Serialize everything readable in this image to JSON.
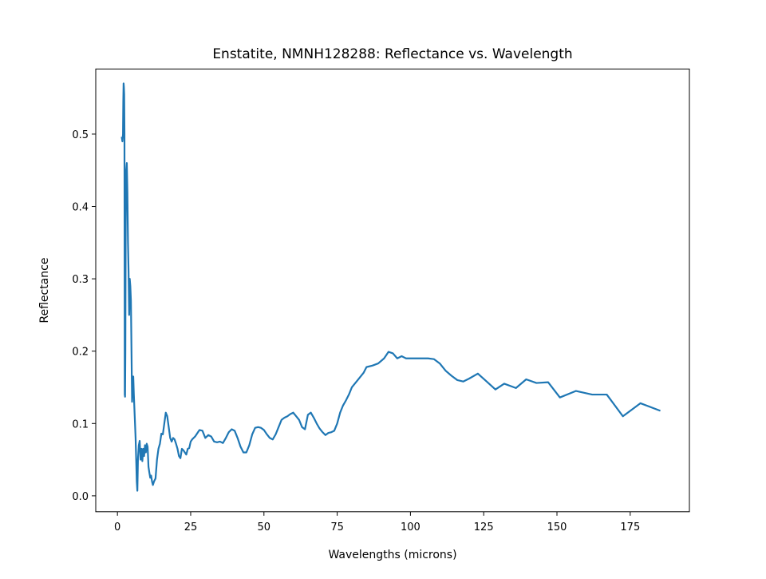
{
  "chart_data": {
    "type": "line",
    "title": "Enstatite, NMNH128288: Reflectance vs. Wavelength",
    "xlabel": "Wavelengths (microns)",
    "ylabel": "Reflectance",
    "xlim": [
      -7.4,
      195.2
    ],
    "ylim": [
      -0.022,
      0.59
    ],
    "xticks": [
      0,
      25,
      50,
      75,
      100,
      125,
      150,
      175
    ],
    "yticks": [
      0.0,
      0.1,
      0.2,
      0.3,
      0.4,
      0.5
    ],
    "xtick_labels": [
      "0",
      "25",
      "50",
      "75",
      "100",
      "125",
      "150",
      "175"
    ],
    "ytick_labels": [
      "0.0",
      "0.1",
      "0.2",
      "0.3",
      "0.4",
      "0.5"
    ],
    "grid": false,
    "legend": false,
    "series": [
      {
        "color": "#1f77b4",
        "x": [
          1.5,
          1.7,
          1.9,
          2.0,
          2.1,
          2.2,
          2.3,
          2.4,
          2.5,
          2.6,
          2.7,
          2.8,
          2.9,
          3.0,
          3.2,
          3.4,
          3.6,
          3.8,
          4.0,
          4.2,
          4.4,
          4.6,
          4.8,
          5.0,
          5.2,
          5.4,
          5.6,
          5.8,
          6.0,
          6.2,
          6.4,
          6.6,
          6.8,
          7.0,
          7.3,
          7.6,
          7.9,
          8.2,
          8.5,
          8.8,
          9.1,
          9.4,
          9.7,
          10.0,
          10.3,
          10.6,
          10.9,
          11.2,
          11.5,
          11.8,
          12.1,
          12.5,
          13.0,
          13.5,
          14.0,
          14.5,
          15.0,
          15.5,
          16.0,
          16.5,
          17.0,
          17.5,
          18.0,
          18.5,
          19.0,
          19.5,
          20.0,
          20.5,
          21.0,
          21.5,
          22.0,
          22.5,
          23.0,
          23.5,
          24.0,
          24.5,
          25.0,
          25.5,
          26.0,
          26.5,
          27.0,
          27.5,
          28.0,
          29.0,
          30.0,
          31.0,
          32.0,
          33.0,
          34.0,
          35.0,
          36.0,
          37.0,
          38.0,
          39.0,
          40.0,
          41.0,
          42.0,
          43.0,
          44.0,
          45.0,
          46.0,
          47.0,
          48.0,
          49.0,
          50.0,
          51.0,
          52.0,
          53.0,
          54.0,
          55.0,
          56.0,
          57.0,
          58.0,
          59.0,
          60.0,
          61.0,
          62.0,
          63.0,
          64.0,
          65.0,
          66.0,
          67.0,
          68.0,
          69.0,
          70.0,
          71.0,
          72.0,
          73.0,
          74.0,
          75.0,
          76.0,
          77.0,
          78.0,
          79.0,
          80.0,
          82.0,
          84.0,
          85.0,
          87.0,
          89.0,
          91.0,
          92.5,
          94.0,
          95.5,
          97.0,
          98.5,
          100.0,
          102.0,
          104.0,
          106.0,
          108.0,
          110.0,
          112.0,
          114.0,
          116.0,
          118.0,
          120.0,
          123.0,
          126.0,
          129.0,
          132.0,
          136.0,
          139.5,
          143.0,
          147.0,
          151.0,
          156.5,
          162.0,
          167.0,
          172.5,
          178.5,
          185.0
        ],
        "y": [
          0.495,
          0.49,
          0.5,
          0.545,
          0.57,
          0.565,
          0.555,
          0.5,
          0.14,
          0.137,
          0.2,
          0.35,
          0.42,
          0.45,
          0.46,
          0.42,
          0.35,
          0.31,
          0.25,
          0.3,
          0.29,
          0.27,
          0.2,
          0.13,
          0.16,
          0.165,
          0.14,
          0.12,
          0.1,
          0.08,
          0.05,
          0.02,
          0.007,
          0.05,
          0.07,
          0.076,
          0.05,
          0.065,
          0.048,
          0.065,
          0.055,
          0.07,
          0.06,
          0.072,
          0.068,
          0.04,
          0.032,
          0.025,
          0.028,
          0.02,
          0.015,
          0.02,
          0.024,
          0.05,
          0.065,
          0.072,
          0.086,
          0.085,
          0.1,
          0.115,
          0.11,
          0.095,
          0.08,
          0.075,
          0.08,
          0.078,
          0.072,
          0.065,
          0.055,
          0.052,
          0.065,
          0.063,
          0.06,
          0.057,
          0.065,
          0.066,
          0.075,
          0.078,
          0.08,
          0.082,
          0.085,
          0.088,
          0.091,
          0.09,
          0.08,
          0.084,
          0.082,
          0.075,
          0.074,
          0.075,
          0.073,
          0.08,
          0.088,
          0.092,
          0.09,
          0.08,
          0.068,
          0.06,
          0.06,
          0.07,
          0.085,
          0.094,
          0.095,
          0.094,
          0.091,
          0.085,
          0.08,
          0.078,
          0.085,
          0.095,
          0.105,
          0.108,
          0.11,
          0.113,
          0.115,
          0.11,
          0.105,
          0.095,
          0.092,
          0.112,
          0.115,
          0.108,
          0.1,
          0.093,
          0.088,
          0.084,
          0.087,
          0.088,
          0.09,
          0.1,
          0.115,
          0.125,
          0.132,
          0.14,
          0.15,
          0.16,
          0.17,
          0.178,
          0.18,
          0.183,
          0.19,
          0.199,
          0.197,
          0.19,
          0.193,
          0.19,
          0.19,
          0.19,
          0.19,
          0.19,
          0.189,
          0.183,
          0.173,
          0.166,
          0.16,
          0.158,
          0.162,
          0.169,
          0.158,
          0.147,
          0.155,
          0.149,
          0.161,
          0.156,
          0.157,
          0.136,
          0.145,
          0.14,
          0.14,
          0.11,
          0.128,
          0.118
        ]
      }
    ]
  }
}
